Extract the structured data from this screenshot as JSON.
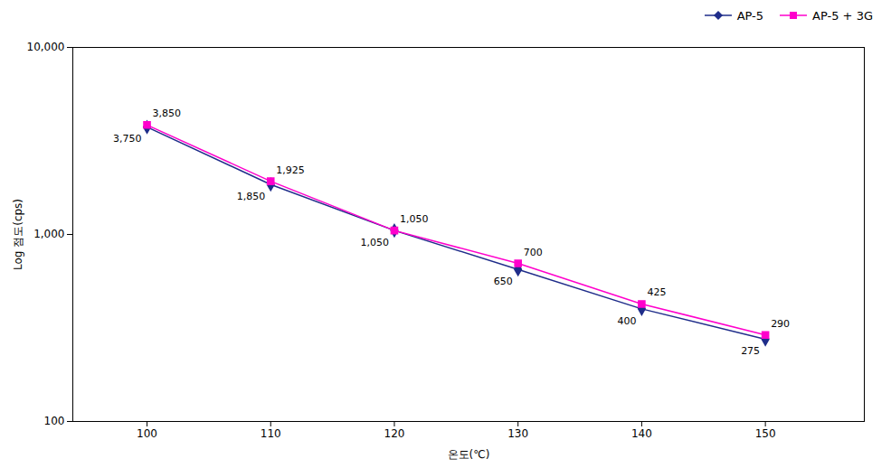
{
  "chart_data": {
    "type": "line",
    "x": [
      100,
      110,
      120,
      130,
      140,
      150
    ],
    "xlabel": "온도(℃)",
    "ylabel": "Log 점도(cps)",
    "log": "y",
    "xlim": [
      94,
      158
    ],
    "xticks": [
      100,
      110,
      120,
      130,
      140,
      150
    ],
    "ylim": [
      100,
      10000
    ],
    "yticks": [
      100,
      {
        "value": 1000,
        "label": "1,000"
      },
      {
        "value": 10000,
        "label": "10,000"
      }
    ],
    "legend": "upper right",
    "data_labels": true,
    "series": [
      {
        "name": "AP-5",
        "color": "#1f2d8a",
        "marker": "diamond",
        "values": [
          3750,
          1850,
          1050,
          650,
          400,
          275
        ],
        "value_labels": [
          "3,750",
          "1,850",
          "1,050",
          "650",
          "400",
          "275"
        ]
      },
      {
        "name": "AP-5 + 3G",
        "color": "#ff00cc",
        "marker": "square",
        "values": [
          3850,
          1925,
          1050,
          700,
          425,
          290
        ],
        "value_labels": [
          "3,850",
          "1,925",
          "1,050",
          "700",
          "425",
          "290"
        ]
      }
    ]
  }
}
